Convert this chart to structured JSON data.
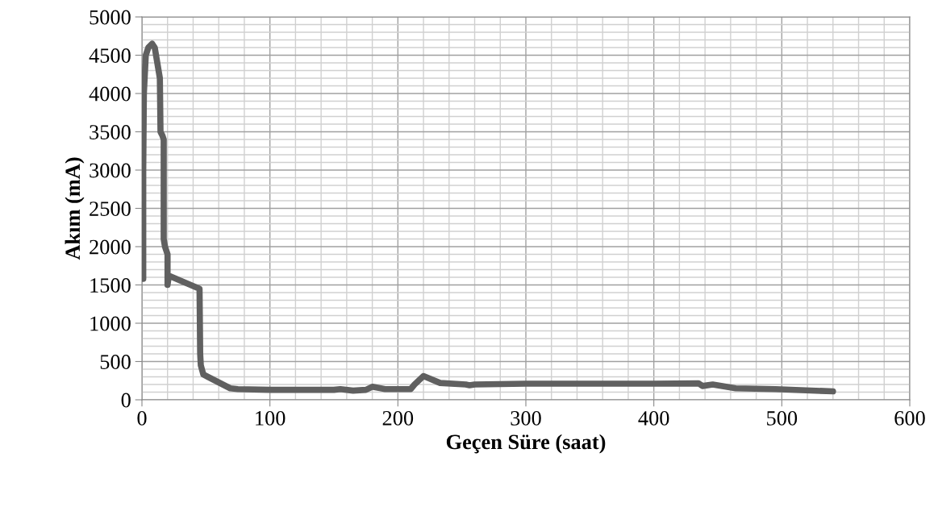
{
  "chart_data": {
    "type": "line",
    "xlabel": "Geçen Süre (saat)",
    "ylabel": "Akım (mA)",
    "xlim": [
      0,
      600
    ],
    "xticks": [
      0,
      100,
      200,
      300,
      400,
      500,
      600
    ],
    "ylim": [
      0,
      5000
    ],
    "yticks": [
      0,
      500,
      1000,
      1500,
      2000,
      2500,
      3000,
      3500,
      4000,
      4500,
      5000
    ],
    "grid": true,
    "marker": "none",
    "line_style": "solid",
    "series": [
      {
        "color": "#606060",
        "x": [
          1,
          1,
          1.5,
          3,
          5,
          8,
          10,
          12,
          14,
          14.5,
          16,
          17,
          17,
          18,
          20,
          20,
          21,
          45,
          45.5,
          46,
          48,
          69,
          75,
          100,
          150,
          155,
          165,
          175,
          180,
          190,
          210,
          213,
          220,
          233,
          253,
          256,
          260,
          300,
          400,
          435,
          438,
          446,
          464,
          495,
          540
        ],
        "values": [
          1580,
          3000,
          4000,
          4500,
          4600,
          4650,
          4600,
          4400,
          4200,
          3500,
          3450,
          3400,
          2100,
          2000,
          1900,
          1500,
          1620,
          1450,
          600,
          450,
          330,
          150,
          140,
          130,
          130,
          140,
          120,
          130,
          170,
          140,
          140,
          200,
          310,
          220,
          200,
          190,
          200,
          210,
          210,
          215,
          180,
          200,
          150,
          140,
          110
        ]
      }
    ]
  }
}
